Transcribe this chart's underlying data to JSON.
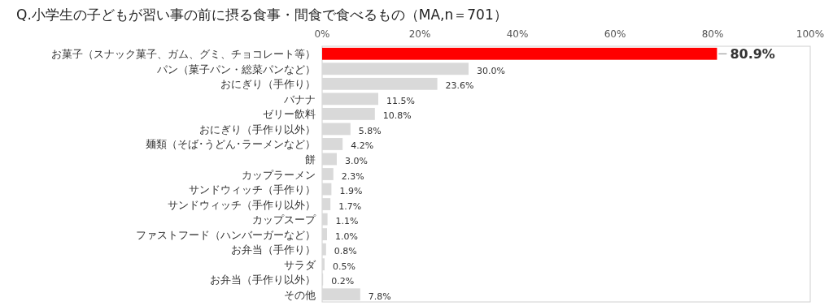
{
  "chart_data": {
    "type": "bar",
    "orientation": "horizontal",
    "title": "Q.小学生の子どもが習い事の前に摂る食事・間食で食べるもの（MA,n＝701）",
    "categories": [
      "お菓子（スナック菓子、ガム、グミ、チョコレート等）",
      "パン（菓子パン・総菜パンなど）",
      "おにぎり（手作り）",
      "バナナ",
      "ゼリー飲料",
      "おにぎり（手作り以外）",
      "麺類（そば･うどん･ラーメンなど）",
      "餅",
      "カップラーメン",
      "サンドウィッチ（手作り）",
      "サンドウィッチ（手作り以外）",
      "カップスープ",
      "ファストフード（ハンバーガーなど）",
      "お弁当（手作り）",
      "サラダ",
      "お弁当（手作り以外）",
      "その他"
    ],
    "values": [
      80.9,
      30.0,
      23.6,
      11.5,
      10.8,
      5.8,
      4.2,
      3.0,
      2.3,
      1.9,
      1.7,
      1.1,
      1.0,
      0.8,
      0.5,
      0.2,
      7.8
    ],
    "value_labels": [
      "80.9%",
      "30.0%",
      "23.6%",
      "11.5%",
      "10.8%",
      "5.8%",
      "4.2%",
      "3.0%",
      "2.3%",
      "1.9%",
      "1.7%",
      "1.1%",
      "1.0%",
      "0.8%",
      "0.5%",
      "0.2%",
      "7.8%"
    ],
    "colors": [
      "#ff0000",
      "#d9d9d9",
      "#d9d9d9",
      "#d9d9d9",
      "#d9d9d9",
      "#d9d9d9",
      "#d9d9d9",
      "#d9d9d9",
      "#d9d9d9",
      "#d9d9d9",
      "#d9d9d9",
      "#d9d9d9",
      "#d9d9d9",
      "#d9d9d9",
      "#d9d9d9",
      "#d9d9d9",
      "#d9d9d9"
    ],
    "xlim": [
      0,
      100
    ],
    "xticks": [
      {
        "value": 0,
        "label": "0%"
      },
      {
        "value": 20,
        "label": "20%"
      },
      {
        "value": 40,
        "label": "40%"
      },
      {
        "value": 60,
        "label": "60%"
      },
      {
        "value": 80,
        "label": "80%"
      },
      {
        "value": 100,
        "label": "100%"
      }
    ],
    "grid": false
  }
}
